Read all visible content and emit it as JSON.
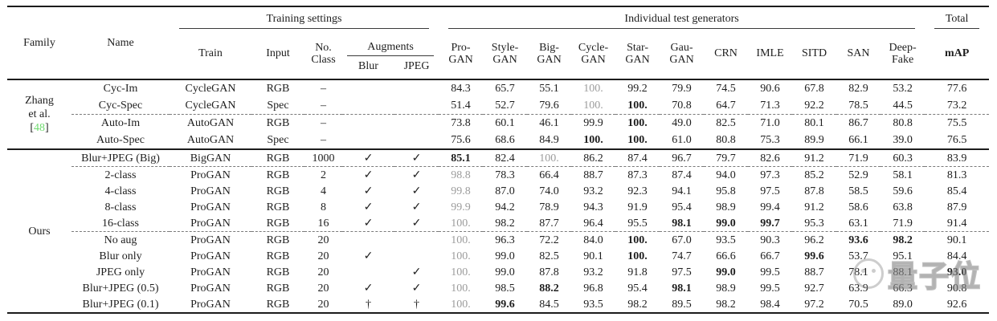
{
  "header": {
    "family": "Family",
    "name": "Name",
    "training_settings": "Training settings",
    "individual_test_generators": "Individual test generators",
    "total": "Total",
    "train": "Train",
    "input": "Input",
    "no_class": "No.\nClass",
    "augments": "Augments",
    "blur": "Blur",
    "jpeg": "JPEG",
    "generators": [
      "Pro-\nGAN",
      "Style-\nGAN",
      "Big-\nGAN",
      "Cycle-\nGAN",
      "Star-\nGAN",
      "Gau-\nGAN",
      "CRN",
      "IMLE",
      "SITD",
      "SAN",
      "Deep-\nFake"
    ],
    "map": "mAP"
  },
  "sections": [
    {
      "family": {
        "lines": [
          "Zhang",
          "et al."
        ],
        "ref": "48"
      },
      "rows": [
        {
          "name": "Cyc-Im",
          "train": "CycleGAN",
          "input": "RGB",
          "classes": "–",
          "blur": "",
          "jpeg": "",
          "values": [
            "84.3",
            "65.7",
            "55.1",
            "100.",
            "99.2",
            "79.9",
            "74.5",
            "90.6",
            "67.8",
            "82.9",
            "53.2"
          ],
          "gray": [
            3
          ],
          "bold": [],
          "map": "77.6",
          "map_bold": false,
          "dashed": false
        },
        {
          "name": "Cyc-Spec",
          "train": "CycleGAN",
          "input": "Spec",
          "classes": "–",
          "blur": "",
          "jpeg": "",
          "values": [
            "51.4",
            "52.7",
            "79.6",
            "100.",
            "100.",
            "70.8",
            "64.7",
            "71.3",
            "92.2",
            "78.5",
            "44.5"
          ],
          "gray": [
            3
          ],
          "bold": [
            4
          ],
          "map": "73.2",
          "map_bold": false,
          "dashed": true
        },
        {
          "name": "Auto-Im",
          "train": "AutoGAN",
          "input": "RGB",
          "classes": "–",
          "blur": "",
          "jpeg": "",
          "values": [
            "73.8",
            "60.1",
            "46.1",
            "99.9",
            "100.",
            "49.0",
            "82.5",
            "71.0",
            "80.1",
            "86.7",
            "80.8"
          ],
          "gray": [],
          "bold": [
            4
          ],
          "map": "75.5",
          "map_bold": false,
          "dashed": false
        },
        {
          "name": "Auto-Spec",
          "train": "AutoGAN",
          "input": "Spec",
          "classes": "–",
          "blur": "",
          "jpeg": "",
          "values": [
            "75.6",
            "68.6",
            "84.9",
            "100.",
            "100.",
            "61.0",
            "80.8",
            "75.3",
            "89.9",
            "66.1",
            "39.0"
          ],
          "gray": [],
          "bold": [
            3,
            4
          ],
          "map": "76.5",
          "map_bold": false,
          "dashed": false
        }
      ]
    },
    {
      "family": {
        "lines": [
          "Ours"
        ],
        "ref": null
      },
      "rows": [
        {
          "name": "Blur+JPEG (Big)",
          "train": "BigGAN",
          "input": "RGB",
          "classes": "1000",
          "blur": "✓",
          "jpeg": "✓",
          "values": [
            "85.1",
            "82.4",
            "100.",
            "86.2",
            "87.4",
            "96.7",
            "79.7",
            "82.6",
            "91.2",
            "71.9",
            "60.3"
          ],
          "gray": [
            2
          ],
          "bold": [
            0
          ],
          "map": "83.9",
          "map_bold": false,
          "dashed": true
        },
        {
          "name": "2-class",
          "train": "ProGAN",
          "input": "RGB",
          "classes": "2",
          "blur": "✓",
          "jpeg": "✓",
          "values": [
            "98.8",
            "78.3",
            "66.4",
            "88.7",
            "87.3",
            "87.4",
            "94.0",
            "97.3",
            "85.2",
            "52.9",
            "58.1"
          ],
          "gray": [
            0
          ],
          "bold": [],
          "map": "81.3",
          "map_bold": false,
          "dashed": false
        },
        {
          "name": "4-class",
          "train": "ProGAN",
          "input": "RGB",
          "classes": "4",
          "blur": "✓",
          "jpeg": "✓",
          "values": [
            "99.8",
            "87.0",
            "74.0",
            "93.2",
            "92.3",
            "94.1",
            "95.8",
            "97.5",
            "87.8",
            "58.5",
            "59.6"
          ],
          "gray": [
            0
          ],
          "bold": [],
          "map": "85.4",
          "map_bold": false,
          "dashed": false
        },
        {
          "name": "8-class",
          "train": "ProGAN",
          "input": "RGB",
          "classes": "8",
          "blur": "✓",
          "jpeg": "✓",
          "values": [
            "99.9",
            "94.2",
            "78.9",
            "94.3",
            "91.9",
            "95.4",
            "98.9",
            "99.4",
            "91.2",
            "58.6",
            "63.8"
          ],
          "gray": [
            0
          ],
          "bold": [],
          "map": "87.9",
          "map_bold": false,
          "dashed": false
        },
        {
          "name": "16-class",
          "train": "ProGAN",
          "input": "RGB",
          "classes": "16",
          "blur": "✓",
          "jpeg": "✓",
          "values": [
            "100.",
            "98.2",
            "87.7",
            "96.4",
            "95.5",
            "98.1",
            "99.0",
            "99.7",
            "95.3",
            "63.1",
            "71.9"
          ],
          "gray": [
            0
          ],
          "bold": [
            5,
            6,
            7
          ],
          "map": "91.4",
          "map_bold": false,
          "dashed": true
        },
        {
          "name": "No aug",
          "train": "ProGAN",
          "input": "RGB",
          "classes": "20",
          "blur": "",
          "jpeg": "",
          "values": [
            "100.",
            "96.3",
            "72.2",
            "84.0",
            "100.",
            "67.0",
            "93.5",
            "90.3",
            "96.2",
            "93.6",
            "98.2"
          ],
          "gray": [
            0
          ],
          "bold": [
            4,
            9,
            10
          ],
          "map": "90.1",
          "map_bold": false,
          "dashed": false
        },
        {
          "name": "Blur only",
          "train": "ProGAN",
          "input": "RGB",
          "classes": "20",
          "blur": "✓",
          "jpeg": "",
          "values": [
            "100.",
            "99.0",
            "82.5",
            "90.1",
            "100.",
            "74.7",
            "66.6",
            "66.7",
            "99.6",
            "53.7",
            "95.1"
          ],
          "gray": [
            0
          ],
          "bold": [
            4,
            8
          ],
          "map": "84.4",
          "map_bold": false,
          "dashed": false
        },
        {
          "name": "JPEG only",
          "train": "ProGAN",
          "input": "RGB",
          "classes": "20",
          "blur": "",
          "jpeg": "✓",
          "values": [
            "100.",
            "99.0",
            "87.8",
            "93.2",
            "91.8",
            "97.5",
            "99.0",
            "99.5",
            "88.7",
            "78.1",
            "88.1"
          ],
          "gray": [
            0
          ],
          "bold": [
            6
          ],
          "map": "93.0",
          "map_bold": true,
          "dashed": false
        },
        {
          "name": "Blur+JPEG (0.5)",
          "train": "ProGAN",
          "input": "RGB",
          "classes": "20",
          "blur": "✓",
          "jpeg": "✓",
          "values": [
            "100.",
            "98.5",
            "88.2",
            "96.8",
            "95.4",
            "98.1",
            "98.9",
            "99.5",
            "92.7",
            "63.9",
            "66.3"
          ],
          "gray": [
            0
          ],
          "bold": [
            2,
            5
          ],
          "map": "90.8",
          "map_bold": false,
          "dashed": false
        },
        {
          "name": "Blur+JPEG (0.1)",
          "train": "ProGAN",
          "input": "RGB",
          "classes": "20",
          "blur": "†",
          "jpeg": "†",
          "values": [
            "100.",
            "99.6",
            "84.5",
            "93.5",
            "98.2",
            "89.5",
            "98.2",
            "98.4",
            "97.2",
            "70.5",
            "89.0"
          ],
          "gray": [
            0
          ],
          "bold": [
            1
          ],
          "map": "92.6",
          "map_bold": false,
          "dashed": false
        }
      ]
    }
  ],
  "watermark": {
    "text": "量子位"
  },
  "colors": {
    "ref_green": "#6fdb6f",
    "gray_value": "#9c9c9c",
    "rule": "#1c1c1c"
  }
}
